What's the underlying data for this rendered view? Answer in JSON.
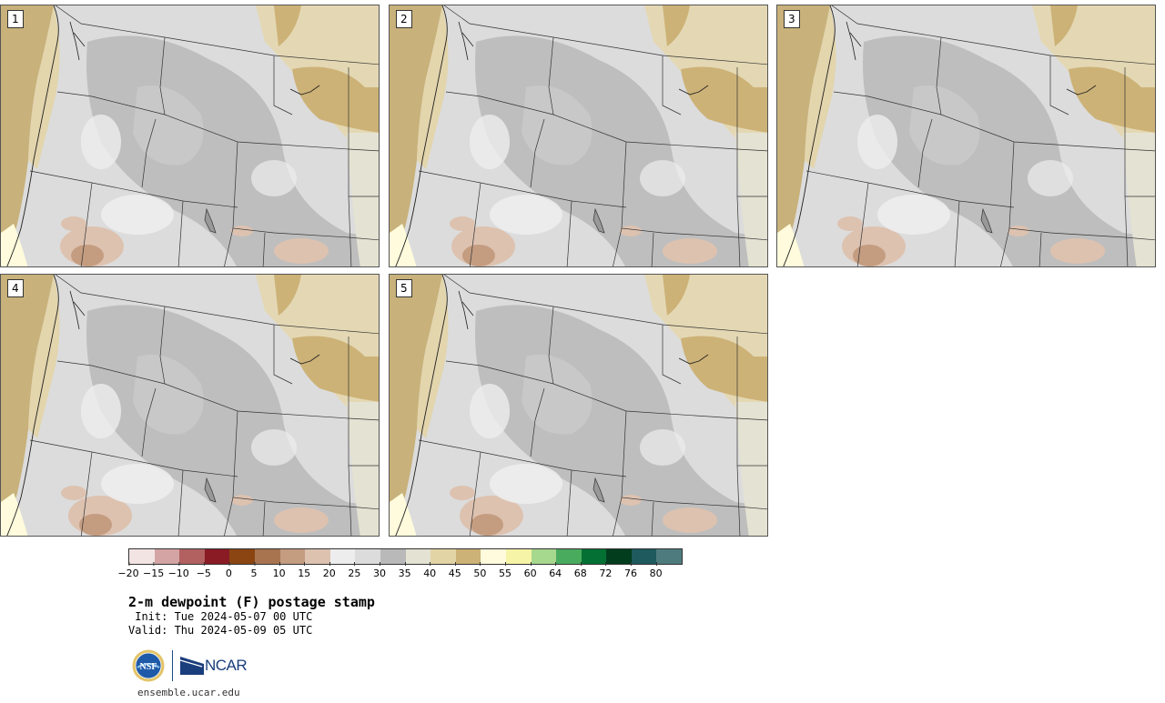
{
  "panels": [
    {
      "label": "1"
    },
    {
      "label": "2"
    },
    {
      "label": "3"
    },
    {
      "label": "4"
    },
    {
      "label": "5"
    }
  ],
  "colorbar": {
    "colors": [
      "#f3e4e4",
      "#d4a4a4",
      "#b26060",
      "#8a1a24",
      "#8a4512",
      "#a87450",
      "#c49c80",
      "#ddc2b0",
      "#ededed",
      "#dcdcdc",
      "#b9b9b9",
      "#e4e2d2",
      "#e3d4a6",
      "#cdb277",
      "#fffbdc",
      "#f6f4a6",
      "#a6d88e",
      "#49ab5e",
      "#047033",
      "#023d1e",
      "#1e5a5e",
      "#4e7c7e"
    ],
    "tick_labels": [
      "−20",
      "−15",
      "−10",
      "−5",
      "0",
      "5",
      "10",
      "15",
      "20",
      "25",
      "30",
      "35",
      "40",
      "45",
      "50",
      "55",
      "60",
      "64",
      "68",
      "72",
      "76",
      "80"
    ]
  },
  "title": "2-m dewpoint (F) postage stamp",
  "init": " Init: Tue 2024-05-07 00 UTC",
  "valid": "Valid: Thu 2024-05-09 05 UTC",
  "logos": {
    "nsf": "NSF",
    "ncar": "NCAR"
  },
  "site": "ensemble.ucar.edu"
}
